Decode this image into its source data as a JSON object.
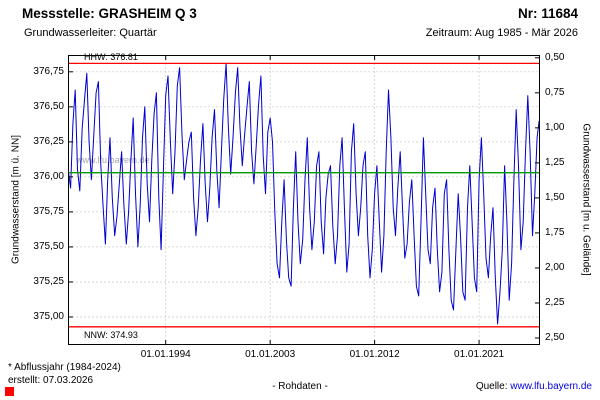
{
  "header": {
    "station": "Messstelle: GRASHEIM Q 3",
    "number": "Nr: 11684",
    "aquifer": "Grundwasserleiter: Quartär",
    "period": "Zeitraum: Aug 1985 - Mär 2026"
  },
  "footer": {
    "footnote": "* Abflussjahr (1984-2024)",
    "created": "erstellt:  07.03.2026",
    "center_note": "- Rohdaten -",
    "source_prefix": "Quelle:",
    "source_url": "www.lfu.bayern.de"
  },
  "chart_data": {
    "type": "line",
    "title": "Messstelle: GRASHEIM Q 3",
    "watermark": "www.lfu.bayern.de",
    "grid_color": "#c9c9c9",
    "x_axis": {
      "min_year": 1985.58,
      "max_year": 2026.25,
      "tick_years": [
        1994,
        2003,
        2012,
        2021
      ],
      "tick_labels": [
        "01.01.1994",
        "01.01.2003",
        "01.01.2012",
        "01.01.2021"
      ]
    },
    "y_left": {
      "label": "Grundwasserstand [m ü. NN]",
      "min": 374.8,
      "max": 376.87,
      "tick_values": [
        376.75,
        376.5,
        376.25,
        376.0,
        375.75,
        375.5,
        375.25,
        375.0
      ],
      "tick_labels": [
        "376,75",
        "376,50",
        "376,25",
        "376,00",
        "375,75",
        "375,50",
        "375,25",
        "375,00"
      ]
    },
    "y_right": {
      "label": "Grundwasserstand [m u. Gelände]",
      "ground_level_m": 377.35,
      "tick_depths": [
        0.5,
        0.75,
        1.0,
        1.25,
        1.5,
        1.75,
        2.0,
        2.25,
        2.5
      ],
      "tick_labels": [
        "0,50",
        "0,75",
        "1,00",
        "1,25",
        "1,50",
        "1,75",
        "2,00",
        "2,25",
        "2,50"
      ]
    },
    "reference_lines": [
      {
        "name": "HHW",
        "label": "HHW: 376.81",
        "value": 376.81,
        "color": "#ff0000"
      },
      {
        "name": "MW",
        "label": "",
        "value": 376.03,
        "color": "#009900"
      },
      {
        "name": "NNW",
        "label": "NNW: 374.93",
        "value": 374.93,
        "color": "#ff0000"
      }
    ],
    "series": [
      {
        "name": "Grundwasserstand Rohdaten",
        "color": "#0000d0",
        "points": [
          [
            1985.6,
            376.05
          ],
          [
            1985.8,
            375.92
          ],
          [
            1986.0,
            376.38
          ],
          [
            1986.2,
            376.62
          ],
          [
            1986.4,
            376.05
          ],
          [
            1986.6,
            375.9
          ],
          [
            1986.8,
            376.35
          ],
          [
            1987.0,
            376.55
          ],
          [
            1987.2,
            376.74
          ],
          [
            1987.4,
            376.25
          ],
          [
            1987.6,
            375.98
          ],
          [
            1987.8,
            376.3
          ],
          [
            1988.0,
            376.6
          ],
          [
            1988.2,
            376.68
          ],
          [
            1988.4,
            376.1
          ],
          [
            1988.6,
            375.8
          ],
          [
            1988.8,
            375.52
          ],
          [
            1989.0,
            375.98
          ],
          [
            1989.2,
            376.28
          ],
          [
            1989.4,
            375.85
          ],
          [
            1989.6,
            375.58
          ],
          [
            1989.8,
            375.72
          ],
          [
            1990.0,
            375.95
          ],
          [
            1990.2,
            376.18
          ],
          [
            1990.4,
            375.8
          ],
          [
            1990.6,
            375.52
          ],
          [
            1990.8,
            375.75
          ],
          [
            1991.0,
            376.12
          ],
          [
            1991.2,
            376.42
          ],
          [
            1991.4,
            375.88
          ],
          [
            1991.6,
            375.5
          ],
          [
            1991.8,
            375.8
          ],
          [
            1992.0,
            376.28
          ],
          [
            1992.2,
            376.5
          ],
          [
            1992.4,
            375.95
          ],
          [
            1992.6,
            375.68
          ],
          [
            1992.8,
            376.12
          ],
          [
            1993.0,
            376.45
          ],
          [
            1993.2,
            376.6
          ],
          [
            1993.4,
            375.85
          ],
          [
            1993.6,
            375.48
          ],
          [
            1993.8,
            376.05
          ],
          [
            1994.0,
            376.58
          ],
          [
            1994.2,
            376.72
          ],
          [
            1994.4,
            376.25
          ],
          [
            1994.6,
            375.88
          ],
          [
            1994.8,
            376.18
          ],
          [
            1995.0,
            376.65
          ],
          [
            1995.2,
            376.78
          ],
          [
            1995.4,
            376.3
          ],
          [
            1995.6,
            375.98
          ],
          [
            1995.8,
            376.12
          ],
          [
            1996.0,
            376.25
          ],
          [
            1996.2,
            376.32
          ],
          [
            1996.4,
            375.85
          ],
          [
            1996.6,
            375.58
          ],
          [
            1996.8,
            375.78
          ],
          [
            1997.0,
            376.12
          ],
          [
            1997.2,
            376.38
          ],
          [
            1997.4,
            375.95
          ],
          [
            1997.6,
            375.68
          ],
          [
            1997.8,
            375.92
          ],
          [
            1998.0,
            376.28
          ],
          [
            1998.2,
            376.48
          ],
          [
            1998.4,
            376.05
          ],
          [
            1998.6,
            375.78
          ],
          [
            1998.8,
            376.18
          ],
          [
            1999.0,
            376.55
          ],
          [
            1999.2,
            376.81
          ],
          [
            1999.4,
            376.35
          ],
          [
            1999.6,
            376.02
          ],
          [
            1999.8,
            376.28
          ],
          [
            2000.0,
            376.6
          ],
          [
            2000.2,
            376.78
          ],
          [
            2000.4,
            376.35
          ],
          [
            2000.6,
            376.08
          ],
          [
            2000.8,
            376.3
          ],
          [
            2001.0,
            376.5
          ],
          [
            2001.2,
            376.68
          ],
          [
            2001.4,
            376.18
          ],
          [
            2001.6,
            375.95
          ],
          [
            2001.8,
            376.22
          ],
          [
            2002.0,
            376.52
          ],
          [
            2002.2,
            376.72
          ],
          [
            2002.4,
            376.15
          ],
          [
            2002.6,
            375.88
          ],
          [
            2002.8,
            376.32
          ],
          [
            2003.0,
            376.42
          ],
          [
            2003.2,
            376.25
          ],
          [
            2003.4,
            375.75
          ],
          [
            2003.6,
            375.38
          ],
          [
            2003.8,
            375.28
          ],
          [
            2004.0,
            375.68
          ],
          [
            2004.2,
            375.98
          ],
          [
            2004.4,
            375.55
          ],
          [
            2004.6,
            375.28
          ],
          [
            2004.8,
            375.22
          ],
          [
            2005.0,
            375.78
          ],
          [
            2005.2,
            376.18
          ],
          [
            2005.4,
            375.68
          ],
          [
            2005.6,
            375.38
          ],
          [
            2005.8,
            375.55
          ],
          [
            2006.0,
            375.98
          ],
          [
            2006.2,
            376.28
          ],
          [
            2006.4,
            375.78
          ],
          [
            2006.6,
            375.48
          ],
          [
            2006.8,
            375.68
          ],
          [
            2007.0,
            376.08
          ],
          [
            2007.2,
            376.18
          ],
          [
            2007.4,
            375.68
          ],
          [
            2007.6,
            375.45
          ],
          [
            2007.8,
            375.85
          ],
          [
            2008.0,
            376.02
          ],
          [
            2008.2,
            376.08
          ],
          [
            2008.4,
            375.65
          ],
          [
            2008.6,
            375.38
          ],
          [
            2008.8,
            375.58
          ],
          [
            2009.0,
            376.08
          ],
          [
            2009.2,
            376.28
          ],
          [
            2009.4,
            375.78
          ],
          [
            2009.6,
            375.32
          ],
          [
            2009.8,
            375.52
          ],
          [
            2010.0,
            376.18
          ],
          [
            2010.2,
            376.38
          ],
          [
            2010.4,
            375.88
          ],
          [
            2010.6,
            375.58
          ],
          [
            2010.8,
            375.78
          ],
          [
            2011.0,
            376.08
          ],
          [
            2011.2,
            376.18
          ],
          [
            2011.4,
            375.58
          ],
          [
            2011.6,
            375.28
          ],
          [
            2011.8,
            375.48
          ],
          [
            2012.0,
            375.88
          ],
          [
            2012.2,
            376.08
          ],
          [
            2012.4,
            375.68
          ],
          [
            2012.6,
            375.32
          ],
          [
            2012.8,
            375.58
          ],
          [
            2013.0,
            376.18
          ],
          [
            2013.2,
            376.62
          ],
          [
            2013.4,
            376.28
          ],
          [
            2013.6,
            375.78
          ],
          [
            2013.8,
            375.58
          ],
          [
            2014.0,
            375.92
          ],
          [
            2014.2,
            376.18
          ],
          [
            2014.4,
            375.78
          ],
          [
            2014.6,
            375.42
          ],
          [
            2014.8,
            375.52
          ],
          [
            2015.0,
            375.82
          ],
          [
            2015.2,
            375.98
          ],
          [
            2015.4,
            375.58
          ],
          [
            2015.6,
            375.22
          ],
          [
            2015.8,
            375.15
          ],
          [
            2016.0,
            375.68
          ],
          [
            2016.2,
            376.28
          ],
          [
            2016.4,
            375.88
          ],
          [
            2016.6,
            375.48
          ],
          [
            2016.8,
            375.38
          ],
          [
            2017.0,
            375.78
          ],
          [
            2017.2,
            375.92
          ],
          [
            2017.4,
            375.48
          ],
          [
            2017.6,
            375.18
          ],
          [
            2017.8,
            375.32
          ],
          [
            2018.0,
            375.88
          ],
          [
            2018.2,
            375.98
          ],
          [
            2018.4,
            375.48
          ],
          [
            2018.6,
            375.12
          ],
          [
            2018.8,
            375.05
          ],
          [
            2019.0,
            375.48
          ],
          [
            2019.2,
            375.88
          ],
          [
            2019.4,
            375.58
          ],
          [
            2019.6,
            375.18
          ],
          [
            2019.8,
            375.12
          ],
          [
            2020.0,
            375.78
          ],
          [
            2020.2,
            376.08
          ],
          [
            2020.4,
            375.68
          ],
          [
            2020.6,
            375.28
          ],
          [
            2020.8,
            375.18
          ],
          [
            2021.0,
            375.98
          ],
          [
            2021.2,
            376.28
          ],
          [
            2021.4,
            375.88
          ],
          [
            2021.6,
            375.42
          ],
          [
            2021.8,
            375.28
          ],
          [
            2022.0,
            375.58
          ],
          [
            2022.2,
            375.78
          ],
          [
            2022.4,
            375.28
          ],
          [
            2022.6,
            374.95
          ],
          [
            2022.8,
            375.18
          ],
          [
            2023.0,
            375.48
          ],
          [
            2023.2,
            376.08
          ],
          [
            2023.4,
            375.68
          ],
          [
            2023.6,
            375.12
          ],
          [
            2023.8,
            375.38
          ],
          [
            2024.0,
            375.98
          ],
          [
            2024.2,
            376.48
          ],
          [
            2024.4,
            376.08
          ],
          [
            2024.6,
            375.48
          ],
          [
            2024.8,
            375.68
          ],
          [
            2025.0,
            376.18
          ],
          [
            2025.2,
            376.58
          ],
          [
            2025.4,
            376.18
          ],
          [
            2025.6,
            375.58
          ],
          [
            2025.8,
            375.88
          ],
          [
            2026.0,
            376.28
          ],
          [
            2026.17,
            376.4
          ]
        ]
      }
    ]
  }
}
